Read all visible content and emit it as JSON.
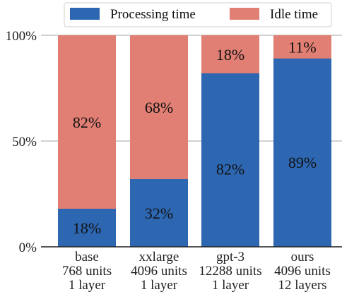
{
  "chart_data": {
    "type": "bar",
    "stacked": true,
    "categories": [
      [
        "base",
        "768 units",
        "1 layer"
      ],
      [
        "xxlarge",
        "4096 units",
        "1 layer"
      ],
      [
        "gpt-3",
        "12288 units",
        "1 layer"
      ],
      [
        "ours",
        "4096 units",
        "12 layers"
      ]
    ],
    "series": [
      {
        "name": "Processing time",
        "color": "#2d67b2",
        "values": [
          18,
          32,
          82,
          89
        ],
        "labels": [
          "18%",
          "32%",
          "82%",
          "89%"
        ]
      },
      {
        "name": "Idle time",
        "color": "#e27f74",
        "values": [
          82,
          68,
          18,
          11
        ],
        "labels": [
          "82%",
          "68%",
          "18%",
          "11%"
        ]
      }
    ],
    "ylim": [
      0,
      100
    ],
    "yticks": [
      0,
      50,
      100
    ],
    "ytick_labels": [
      "0%",
      "50%",
      "100%"
    ],
    "xlabel": "",
    "ylabel": "",
    "grid": "y",
    "legend_position": "top"
  }
}
